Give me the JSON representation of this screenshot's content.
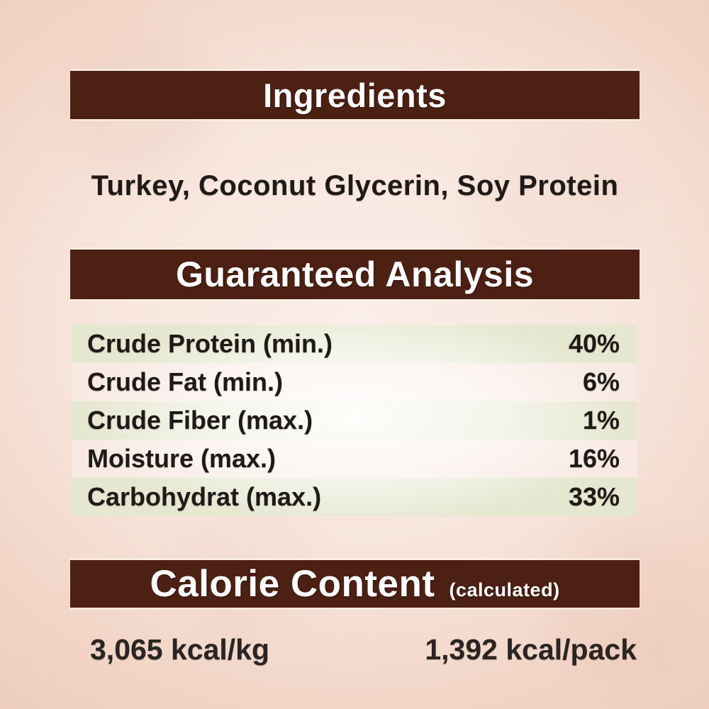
{
  "page": {
    "type": "pet-food-label",
    "colors": {
      "background_outer": "#ebc7b4",
      "background_inner": "#faeee8",
      "banner": "#4c2013",
      "banner_text": "#ffffff",
      "row_green": "#e5e7d0",
      "row_pink": "#f8eae3",
      "body_text": "#1e1a17"
    }
  },
  "ingredients": {
    "title": "Ingredients",
    "list": "Turkey, Coconut Glycerin, Soy Protein"
  },
  "guaranteed_analysis": {
    "title": "Guaranteed Analysis",
    "rows": [
      {
        "label": "Crude Protein (min.)",
        "value": "40%"
      },
      {
        "label": "Crude Fat (min.)",
        "value": "6%"
      },
      {
        "label": "Crude Fiber (max.)",
        "value": "1%"
      },
      {
        "label": "Moisture (max.)",
        "value": "16%"
      },
      {
        "label": "Carbohydrat (max.)",
        "value": "33%"
      }
    ]
  },
  "calorie_content": {
    "title": "Calorie Content",
    "subtitle": "(calculated)",
    "per_kg": "3,065 kcal/kg",
    "per_pack": "1,392 kcal/pack"
  }
}
